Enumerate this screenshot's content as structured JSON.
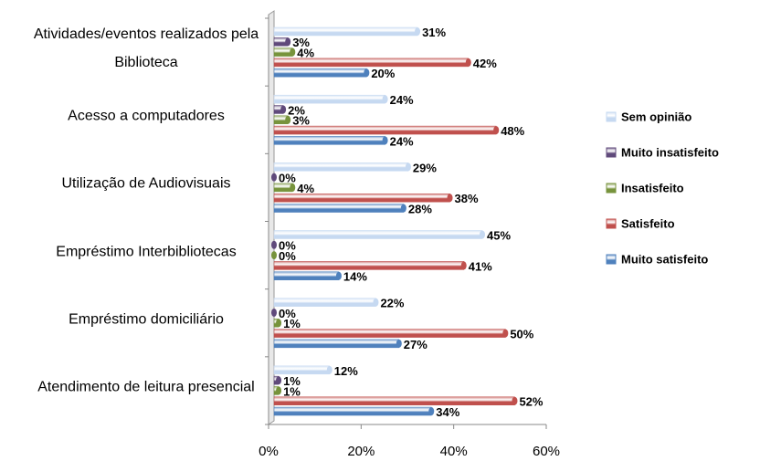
{
  "chart_data": {
    "type": "hbar",
    "categories": [
      "Atividades/eventos realizados pela Biblioteca",
      "Acesso a computadores",
      "Utilização de Audiovisuais",
      "Empréstimo Interbibliotecas",
      "Empréstimo domiciliário",
      "Atendimento de leitura presencial"
    ],
    "series": [
      {
        "name": "Sem opinião",
        "color": "#c6d9f1",
        "values": [
          31,
          24,
          29,
          45,
          22,
          12
        ],
        "value_labels": [
          "31%",
          "24%",
          "29%",
          "45%",
          "22%",
          "12%"
        ]
      },
      {
        "name": "Muito insatisfeito",
        "color": "#604a7b",
        "values": [
          3,
          2,
          0,
          0,
          0,
          1
        ],
        "value_labels": [
          "3%",
          "2%",
          "0%",
          "0%",
          "0%",
          "1%"
        ]
      },
      {
        "name": "Insatisfeito",
        "color": "#77933c",
        "values": [
          4,
          3,
          4,
          0,
          1,
          1
        ],
        "value_labels": [
          "4%",
          "3%",
          "4%",
          "0%",
          "1%",
          "1%"
        ]
      },
      {
        "name": "Satisfeito",
        "color": "#c0504d",
        "values": [
          42,
          48,
          38,
          41,
          50,
          52
        ],
        "value_labels": [
          "42%",
          "48%",
          "38%",
          "41%",
          "50%",
          "52%"
        ]
      },
      {
        "name": "Muito satisfeito",
        "color": "#4f81bd",
        "values": [
          20,
          24,
          28,
          14,
          27,
          34
        ],
        "value_labels": [
          "20%",
          "24%",
          "28%",
          "14%",
          "27%",
          "34%"
        ]
      }
    ],
    "xlim": [
      0,
      60
    ],
    "xticks": [
      {
        "value": 0,
        "label": "0%"
      },
      {
        "value": 20,
        "label": "20%"
      },
      {
        "value": 40,
        "label": "40%"
      },
      {
        "value": 60,
        "label": "60%"
      }
    ],
    "legend": "right"
  }
}
